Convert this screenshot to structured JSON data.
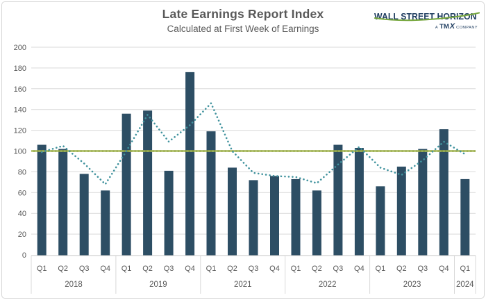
{
  "header": {
    "title": "Late Earnings Report Index",
    "subtitle": "Calculated at First Week of Earnings",
    "logo": {
      "wordmark": "WALL STREET HORIZON",
      "tagline_prefix": "A",
      "tagline_brand": "TM",
      "tagline_brand_x": "X",
      "tagline_suffix": "COMPANY",
      "navy": "#1E3C5F",
      "green": "#78A83F"
    }
  },
  "colors": {
    "background": "#FFFFFF",
    "frame_border": "#D6D6D6",
    "grid": "#D9D9D9",
    "axis_line": "#C6C6C6",
    "axis_text": "#595959",
    "title_text": "#595959"
  },
  "chart_data": {
    "type": "bar",
    "title": "Late Earnings Report Index",
    "subtitle": "Calculated at First Week of Earnings",
    "ylim": [
      0,
      200
    ],
    "yticks": [
      0,
      20,
      40,
      60,
      80,
      100,
      120,
      140,
      160,
      180,
      200
    ],
    "grid": true,
    "legend": "none",
    "groups": [
      {
        "year": "2018",
        "quarters": [
          "Q1",
          "Q2",
          "Q3",
          "Q4"
        ]
      },
      {
        "year": "2019",
        "quarters": [
          "Q1",
          "Q2",
          "Q3",
          "Q4"
        ]
      },
      {
        "year": "2021",
        "quarters": [
          "Q1",
          "Q2",
          "Q3",
          "Q4"
        ]
      },
      {
        "year": "2022",
        "quarters": [
          "Q1",
          "Q2",
          "Q3",
          "Q4"
        ]
      },
      {
        "year": "2023",
        "quarters": [
          "Q1",
          "Q2",
          "Q3",
          "Q4"
        ]
      },
      {
        "year": "2024",
        "quarters": [
          "Q1"
        ]
      }
    ],
    "categories": [
      "2018 Q1",
      "2018 Q2",
      "2018 Q3",
      "2018 Q4",
      "2019 Q1",
      "2019 Q2",
      "2019 Q3",
      "2019 Q4",
      "2021 Q1",
      "2021 Q2",
      "2021 Q3",
      "2021 Q4",
      "2022 Q1",
      "2022 Q2",
      "2022 Q3",
      "2022 Q4",
      "2023 Q1",
      "2023 Q2",
      "2023 Q3",
      "2023 Q4",
      "2024 Q1"
    ],
    "series": [
      {
        "name": "Late Earnings Report Index",
        "type": "bar",
        "color": "#2D4E64",
        "values": [
          106,
          102,
          78,
          62,
          136,
          139,
          81,
          176,
          119,
          84,
          72,
          76,
          73,
          62,
          106,
          103,
          66,
          85,
          102,
          121,
          73
        ]
      },
      {
        "name": "Smoothed trend",
        "type": "line",
        "line_style": "dotted",
        "color": "#41939E",
        "values": [
          99,
          105,
          88,
          68,
          100,
          135,
          109,
          125,
          146,
          100,
          79,
          76,
          75,
          69,
          87,
          104,
          84,
          77,
          91,
          109,
          97
        ]
      }
    ],
    "reference_line": {
      "value": 100,
      "color": "#8FA33A",
      "overlay_dash_color": "#CFDD8A"
    }
  }
}
